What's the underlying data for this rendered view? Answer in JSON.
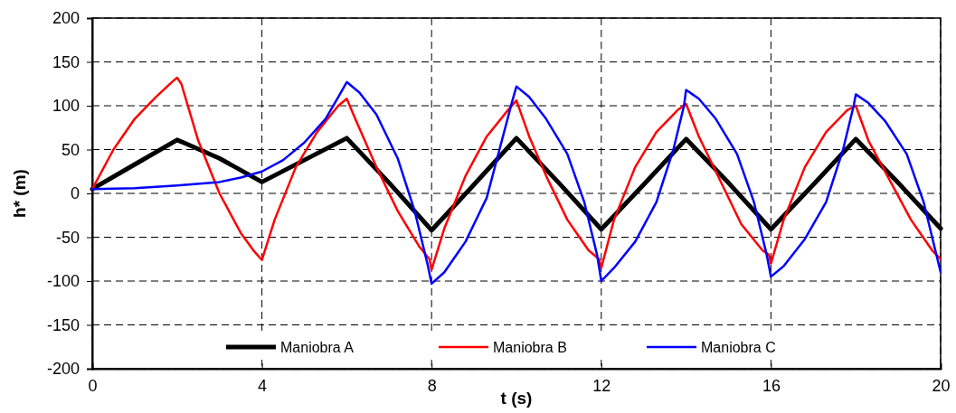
{
  "chart_data": {
    "type": "line",
    "xlabel": "t (s)",
    "ylabel": "h* (m)",
    "xlim": [
      0,
      20
    ],
    "xticks": [
      0,
      4,
      8,
      12,
      16,
      20
    ],
    "ylim": [
      -200,
      200
    ],
    "yticks": [
      -200,
      -150,
      -100,
      -50,
      0,
      50,
      100,
      150,
      200
    ],
    "grid": true,
    "legend": "bottom",
    "series": [
      {
        "name": "Maniobra A",
        "color": "#000000",
        "x": [
          0,
          1,
          2,
          2.2,
          3,
          4,
          5,
          6,
          7,
          8,
          9,
          10,
          11,
          12,
          13,
          14,
          15,
          16,
          17,
          18,
          19,
          20
        ],
        "values": [
          5,
          33,
          61,
          57,
          40,
          13,
          38,
          63,
          12,
          -42,
          10,
          63,
          12,
          -41,
          10,
          62,
          12,
          -41,
          10,
          62,
          12,
          -40
        ]
      },
      {
        "name": "Maniobra B",
        "color": "#ff0000",
        "x": [
          0,
          0.5,
          1,
          1.5,
          1.9,
          2,
          2.1,
          2.5,
          3,
          3.5,
          3.8,
          4,
          4.3,
          4.8,
          5.3,
          5.8,
          6,
          6.2,
          6.7,
          7.2,
          7.7,
          7.95,
          8,
          8.3,
          8.8,
          9.3,
          9.8,
          10,
          10.3,
          10.7,
          11.2,
          11.7,
          11.95,
          12,
          12.3,
          12.8,
          13.3,
          13.8,
          14,
          14.3,
          14.8,
          15.3,
          15.8,
          15.95,
          16,
          16.3,
          16.8,
          17.3,
          17.8,
          18,
          18.3,
          18.8,
          19.3,
          19.8,
          20
        ],
        "values": [
          5,
          50,
          85,
          110,
          128,
          132,
          125,
          60,
          0,
          -45,
          -65,
          -76,
          -30,
          30,
          70,
          100,
          108,
          85,
          30,
          -20,
          -60,
          -75,
          -87,
          -40,
          20,
          65,
          95,
          106,
          65,
          20,
          -30,
          -65,
          -75,
          -85,
          -30,
          30,
          70,
          95,
          102,
          65,
          15,
          -35,
          -65,
          -70,
          -80,
          -30,
          30,
          70,
          95,
          100,
          60,
          15,
          -30,
          -65,
          -75
        ]
      },
      {
        "name": "Maniobra C",
        "color": "#0000ff",
        "x": [
          0,
          1,
          2,
          3,
          3.5,
          4,
          4.5,
          5,
          5.5,
          5.8,
          6,
          6.3,
          6.7,
          7.2,
          7.6,
          7.9,
          8,
          8.3,
          8.8,
          9.3,
          9.6,
          9.9,
          10,
          10.3,
          10.7,
          11.2,
          11.6,
          11.9,
          12,
          12.3,
          12.8,
          13.3,
          13.7,
          13.95,
          14,
          14.3,
          14.7,
          15.2,
          15.6,
          15.9,
          16,
          16.3,
          16.8,
          17.3,
          17.7,
          17.95,
          18,
          18.3,
          18.7,
          19.2,
          19.6,
          20
        ],
        "values": [
          5,
          6,
          9,
          13,
          18,
          25,
          38,
          58,
          85,
          110,
          127,
          115,
          90,
          40,
          -20,
          -80,
          -103,
          -90,
          -55,
          -5,
          50,
          105,
          122,
          110,
          85,
          45,
          -10,
          -70,
          -100,
          -85,
          -55,
          -10,
          50,
          100,
          118,
          108,
          85,
          45,
          -10,
          -70,
          -95,
          -83,
          -52,
          -10,
          50,
          100,
          113,
          103,
          82,
          45,
          -10,
          -90
        ]
      }
    ]
  }
}
